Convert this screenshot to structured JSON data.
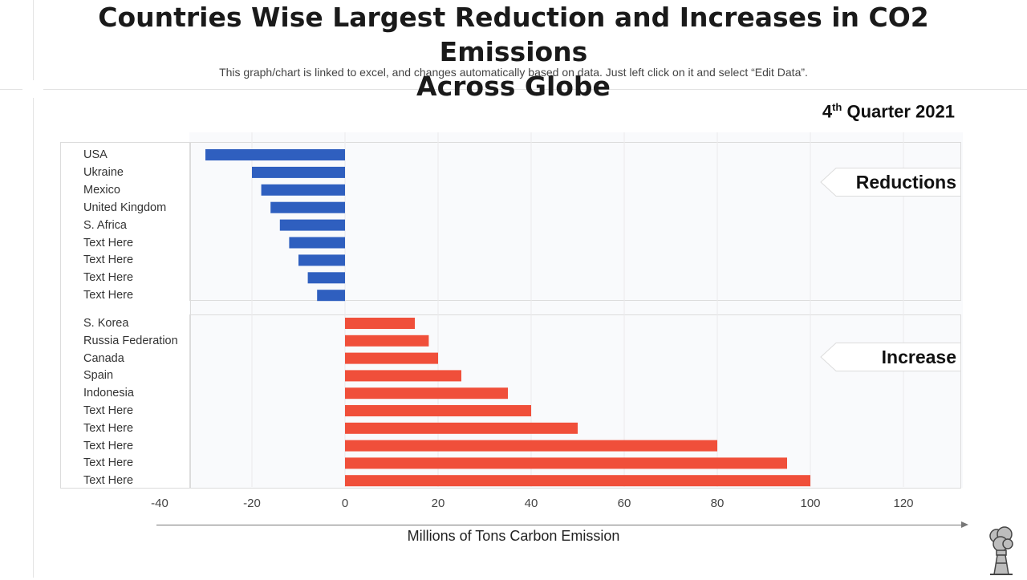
{
  "header": {
    "title_line1": "Countries Wise Largest Reduction and Increases in CO2 Emissions",
    "title_line2": "Across Globe",
    "subtitle": "This graph/chart is linked to excel, and changes automatically based on data. Just left click on it and select “Edit Data”."
  },
  "period": {
    "ordinal": "4",
    "suffix": "th",
    "label": "Quarter 2021"
  },
  "tags": {
    "reductions": "Reductions",
    "increase": "Increase"
  },
  "icon_name": "factory-smoke-icon",
  "colors": {
    "reduction": "#2f5fbf",
    "increase": "#f04f3a"
  },
  "chart_data": {
    "type": "bar",
    "orientation": "horizontal",
    "xlabel": "Millions of Tons Carbon Emission",
    "xlim": [
      -40,
      130
    ],
    "xticks": [
      "-40",
      "-20",
      "0",
      "20",
      "40",
      "60",
      "80",
      "100",
      "120"
    ],
    "series": [
      {
        "name": "Reductions",
        "categories": [
          "USA",
          "Ukraine",
          "Mexico",
          "United Kingdom",
          "S. Africa",
          "Text Here",
          "Text Here",
          "Text Here",
          "Text Here"
        ],
        "values": [
          -30,
          -20,
          -18,
          -16,
          -14,
          -12,
          -10,
          -8,
          -6
        ]
      },
      {
        "name": "Increase",
        "categories": [
          "S. Korea",
          "Russia Federation",
          "Canada",
          "Spain",
          "Indonesia",
          "Text Here",
          "Text Here",
          "Text Here",
          "Text Here",
          "Text Here"
        ],
        "values": [
          15,
          18,
          20,
          25,
          35,
          40,
          50,
          80,
          95,
          100
        ]
      }
    ]
  }
}
